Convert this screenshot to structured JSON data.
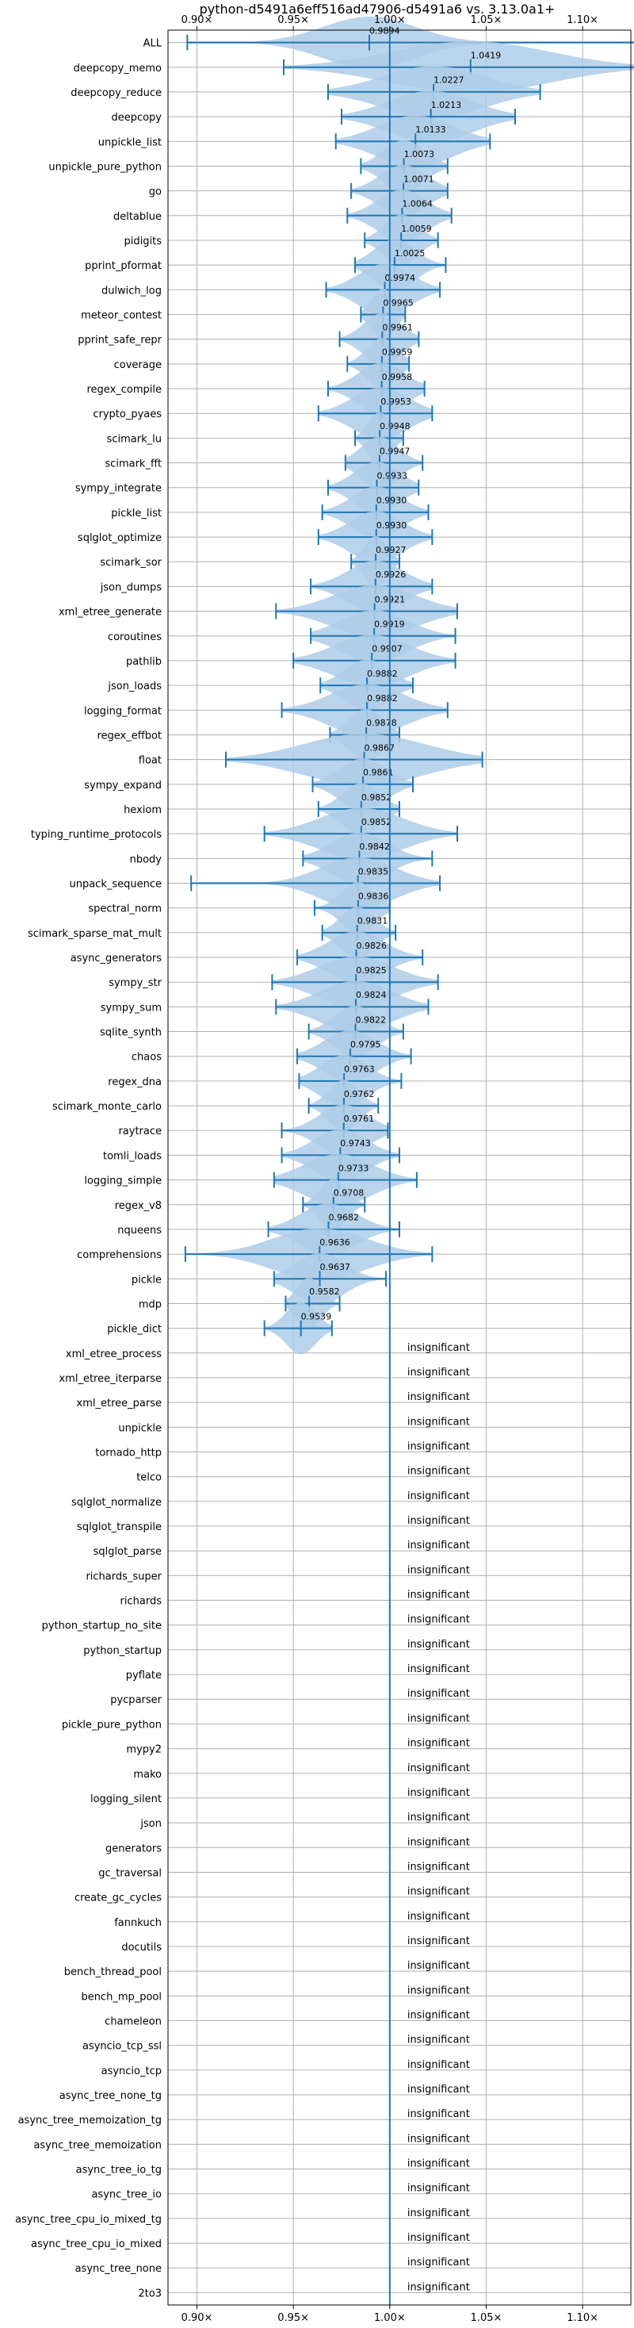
{
  "chart_data": {
    "type": "violin",
    "title": "python-d5491a6eff516ad47906-d5491a6 vs. 3.13.0a1+",
    "xlabel": "",
    "ylabel": "",
    "xlim": [
      0.885,
      1.125
    ],
    "x_ticks": [
      0.9,
      0.95,
      1.0,
      1.05,
      1.1
    ],
    "x_tick_labels": [
      "0.90×",
      "0.95×",
      "1.00×",
      "1.05×",
      "1.10×"
    ],
    "reference_line": 1.0,
    "grid": true,
    "colors": {
      "violin": "#aecde8",
      "lines": "#1f77b4",
      "grid": "#b0b0b0"
    },
    "benchmarks": [
      {
        "name": "ALL",
        "median": 0.9894,
        "min": 0.895,
        "max": 1.13,
        "spread": 0.05
      },
      {
        "name": "deepcopy_memo",
        "median": 1.0419,
        "min": 0.945,
        "max": 1.13,
        "spread": 0.085
      },
      {
        "name": "deepcopy_reduce",
        "median": 1.0227,
        "min": 0.968,
        "max": 1.078,
        "spread": 0.055
      },
      {
        "name": "deepcopy",
        "median": 1.0213,
        "min": 0.975,
        "max": 1.065,
        "spread": 0.045
      },
      {
        "name": "unpickle_list",
        "median": 1.0133,
        "min": 0.972,
        "max": 1.052,
        "spread": 0.04
      },
      {
        "name": "unpickle_pure_python",
        "median": 1.0073,
        "min": 0.985,
        "max": 1.03,
        "spread": 0.022
      },
      {
        "name": "go",
        "median": 1.0071,
        "min": 0.98,
        "max": 1.03,
        "spread": 0.025
      },
      {
        "name": "deltablue",
        "median": 1.0064,
        "min": 0.978,
        "max": 1.032,
        "spread": 0.026
      },
      {
        "name": "pidigits",
        "median": 1.0059,
        "min": 0.987,
        "max": 1.025,
        "spread": 0.018
      },
      {
        "name": "pprint_pformat",
        "median": 1.0025,
        "min": 0.982,
        "max": 1.029,
        "spread": 0.022
      },
      {
        "name": "dulwich_log",
        "median": 0.9974,
        "min": 0.967,
        "max": 1.026,
        "spread": 0.028
      },
      {
        "name": "meteor_contest",
        "median": 0.9965,
        "min": 0.985,
        "max": 1.008,
        "spread": 0.012
      },
      {
        "name": "pprint_safe_repr",
        "median": 0.9961,
        "min": 0.974,
        "max": 1.015,
        "spread": 0.02
      },
      {
        "name": "coverage",
        "median": 0.9959,
        "min": 0.978,
        "max": 1.01,
        "spread": 0.016
      },
      {
        "name": "regex_compile",
        "median": 0.9958,
        "min": 0.968,
        "max": 1.018,
        "spread": 0.025
      },
      {
        "name": "crypto_pyaes",
        "median": 0.9953,
        "min": 0.963,
        "max": 1.022,
        "spread": 0.03
      },
      {
        "name": "scimark_lu",
        "median": 0.9948,
        "min": 0.982,
        "max": 1.007,
        "spread": 0.012
      },
      {
        "name": "scimark_fft",
        "median": 0.9947,
        "min": 0.977,
        "max": 1.017,
        "spread": 0.02
      },
      {
        "name": "sympy_integrate",
        "median": 0.9933,
        "min": 0.968,
        "max": 1.015,
        "spread": 0.024
      },
      {
        "name": "pickle_list",
        "median": 0.993,
        "min": 0.965,
        "max": 1.02,
        "spread": 0.026
      },
      {
        "name": "sqlglot_optimize",
        "median": 0.993,
        "min": 0.963,
        "max": 1.022,
        "spread": 0.028
      },
      {
        "name": "scimark_sor",
        "median": 0.9927,
        "min": 0.98,
        "max": 1.005,
        "spread": 0.012
      },
      {
        "name": "json_dumps",
        "median": 0.9926,
        "min": 0.959,
        "max": 1.022,
        "spread": 0.03
      },
      {
        "name": "xml_etree_generate",
        "median": 0.9921,
        "min": 0.941,
        "max": 1.035,
        "spread": 0.045
      },
      {
        "name": "coroutines",
        "median": 0.9919,
        "min": 0.959,
        "max": 1.034,
        "spread": 0.036
      },
      {
        "name": "pathlib",
        "median": 0.9907,
        "min": 0.95,
        "max": 1.034,
        "spread": 0.04
      },
      {
        "name": "json_loads",
        "median": 0.9882,
        "min": 0.964,
        "max": 1.012,
        "spread": 0.024
      },
      {
        "name": "logging_format",
        "median": 0.9882,
        "min": 0.944,
        "max": 1.03,
        "spread": 0.04
      },
      {
        "name": "regex_effbot",
        "median": 0.9878,
        "min": 0.969,
        "max": 1.005,
        "spread": 0.018
      },
      {
        "name": "float",
        "median": 0.9867,
        "min": 0.915,
        "max": 1.048,
        "spread": 0.065
      },
      {
        "name": "sympy_expand",
        "median": 0.9861,
        "min": 0.96,
        "max": 1.012,
        "spread": 0.025
      },
      {
        "name": "hexiom",
        "median": 0.9852,
        "min": 0.963,
        "max": 1.005,
        "spread": 0.02
      },
      {
        "name": "typing_runtime_protocols",
        "median": 0.9852,
        "min": 0.935,
        "max": 1.035,
        "spread": 0.045
      },
      {
        "name": "nbody",
        "median": 0.9842,
        "min": 0.955,
        "max": 1.022,
        "spread": 0.03
      },
      {
        "name": "unpack_sequence",
        "median": 0.9835,
        "min": 0.897,
        "max": 1.026,
        "spread": 0.04
      },
      {
        "name": "spectral_norm",
        "median": 0.9836,
        "min": 0.961,
        "max": 1.0,
        "spread": 0.018
      },
      {
        "name": "scimark_sparse_mat_mult",
        "median": 0.9831,
        "min": 0.965,
        "max": 1.003,
        "spread": 0.018
      },
      {
        "name": "async_generators",
        "median": 0.9826,
        "min": 0.952,
        "max": 1.017,
        "spread": 0.03
      },
      {
        "name": "sympy_str",
        "median": 0.9825,
        "min": 0.939,
        "max": 1.025,
        "spread": 0.04
      },
      {
        "name": "sympy_sum",
        "median": 0.9824,
        "min": 0.941,
        "max": 1.02,
        "spread": 0.038
      },
      {
        "name": "sqlite_synth",
        "median": 0.9822,
        "min": 0.958,
        "max": 1.007,
        "spread": 0.022
      },
      {
        "name": "chaos",
        "median": 0.9795,
        "min": 0.952,
        "max": 1.011,
        "spread": 0.028
      },
      {
        "name": "regex_dna",
        "median": 0.9763,
        "min": 0.953,
        "max": 1.006,
        "spread": 0.025
      },
      {
        "name": "scimark_monte_carlo",
        "median": 0.9762,
        "min": 0.958,
        "max": 0.994,
        "spread": 0.016
      },
      {
        "name": "raytrace",
        "median": 0.9761,
        "min": 0.944,
        "max": 0.999,
        "spread": 0.026
      },
      {
        "name": "tomli_loads",
        "median": 0.9743,
        "min": 0.944,
        "max": 1.005,
        "spread": 0.028
      },
      {
        "name": "logging_simple",
        "median": 0.9733,
        "min": 0.94,
        "max": 1.014,
        "spread": 0.036
      },
      {
        "name": "regex_v8",
        "median": 0.9708,
        "min": 0.955,
        "max": 0.987,
        "spread": 0.014
      },
      {
        "name": "nqueens",
        "median": 0.9682,
        "min": 0.937,
        "max": 1.005,
        "spread": 0.03
      },
      {
        "name": "comprehensions",
        "median": 0.9636,
        "min": 0.894,
        "max": 1.022,
        "spread": 0.05
      },
      {
        "name": "pickle",
        "median": 0.9637,
        "min": 0.94,
        "max": 0.998,
        "spread": 0.026
      },
      {
        "name": "mdp",
        "median": 0.9582,
        "min": 0.946,
        "max": 0.974,
        "spread": 0.013
      },
      {
        "name": "pickle_dict",
        "median": 0.9539,
        "min": 0.935,
        "max": 0.97,
        "spread": 0.016
      }
    ],
    "insignificant_label": "insignificant",
    "insignificant": [
      "xml_etree_process",
      "xml_etree_iterparse",
      "xml_etree_parse",
      "unpickle",
      "tornado_http",
      "telco",
      "sqlglot_normalize",
      "sqlglot_transpile",
      "sqlglot_parse",
      "richards_super",
      "richards",
      "python_startup_no_site",
      "python_startup",
      "pyflate",
      "pycparser",
      "pickle_pure_python",
      "mypy2",
      "mako",
      "logging_silent",
      "json",
      "generators",
      "gc_traversal",
      "create_gc_cycles",
      "fannkuch",
      "docutils",
      "bench_thread_pool",
      "bench_mp_pool",
      "chameleon",
      "asyncio_tcp_ssl",
      "asyncio_tcp",
      "async_tree_none_tg",
      "async_tree_memoization_tg",
      "async_tree_memoization",
      "async_tree_io_tg",
      "async_tree_io",
      "async_tree_cpu_io_mixed_tg",
      "async_tree_cpu_io_mixed",
      "async_tree_none",
      "2to3"
    ]
  }
}
